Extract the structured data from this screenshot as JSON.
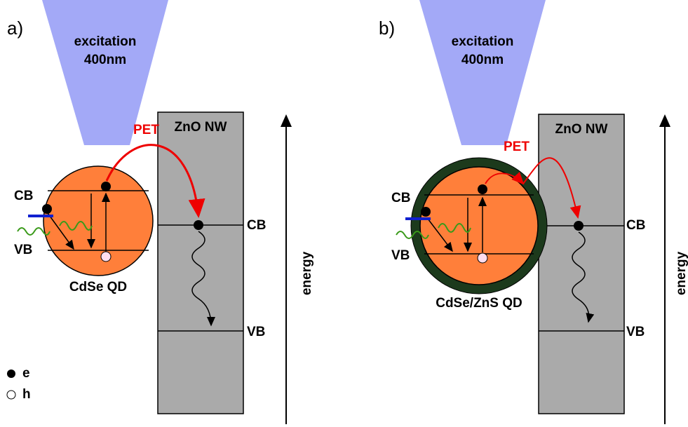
{
  "panels": [
    {
      "label": "a)",
      "excitation": [
        "excitation",
        "400nm"
      ],
      "transfer": "PET",
      "nanowire": {
        "label": "ZnO NW",
        "cb": "CB",
        "vb": "VB"
      },
      "dot": {
        "label": "CdSe QD",
        "cb": "CB",
        "vb": "VB"
      },
      "axis_label": "energy"
    },
    {
      "label": "b)",
      "excitation": [
        "excitation",
        "400nm"
      ],
      "transfer": "PET",
      "nanowire": {
        "label": "ZnO NW",
        "cb": "CB",
        "vb": "VB"
      },
      "dot": {
        "label": "CdSe/ZnS QD",
        "cb": "CB",
        "vb": "VB"
      },
      "axis_label": "energy"
    }
  ],
  "legend": {
    "electron": "e",
    "hole": "h"
  }
}
